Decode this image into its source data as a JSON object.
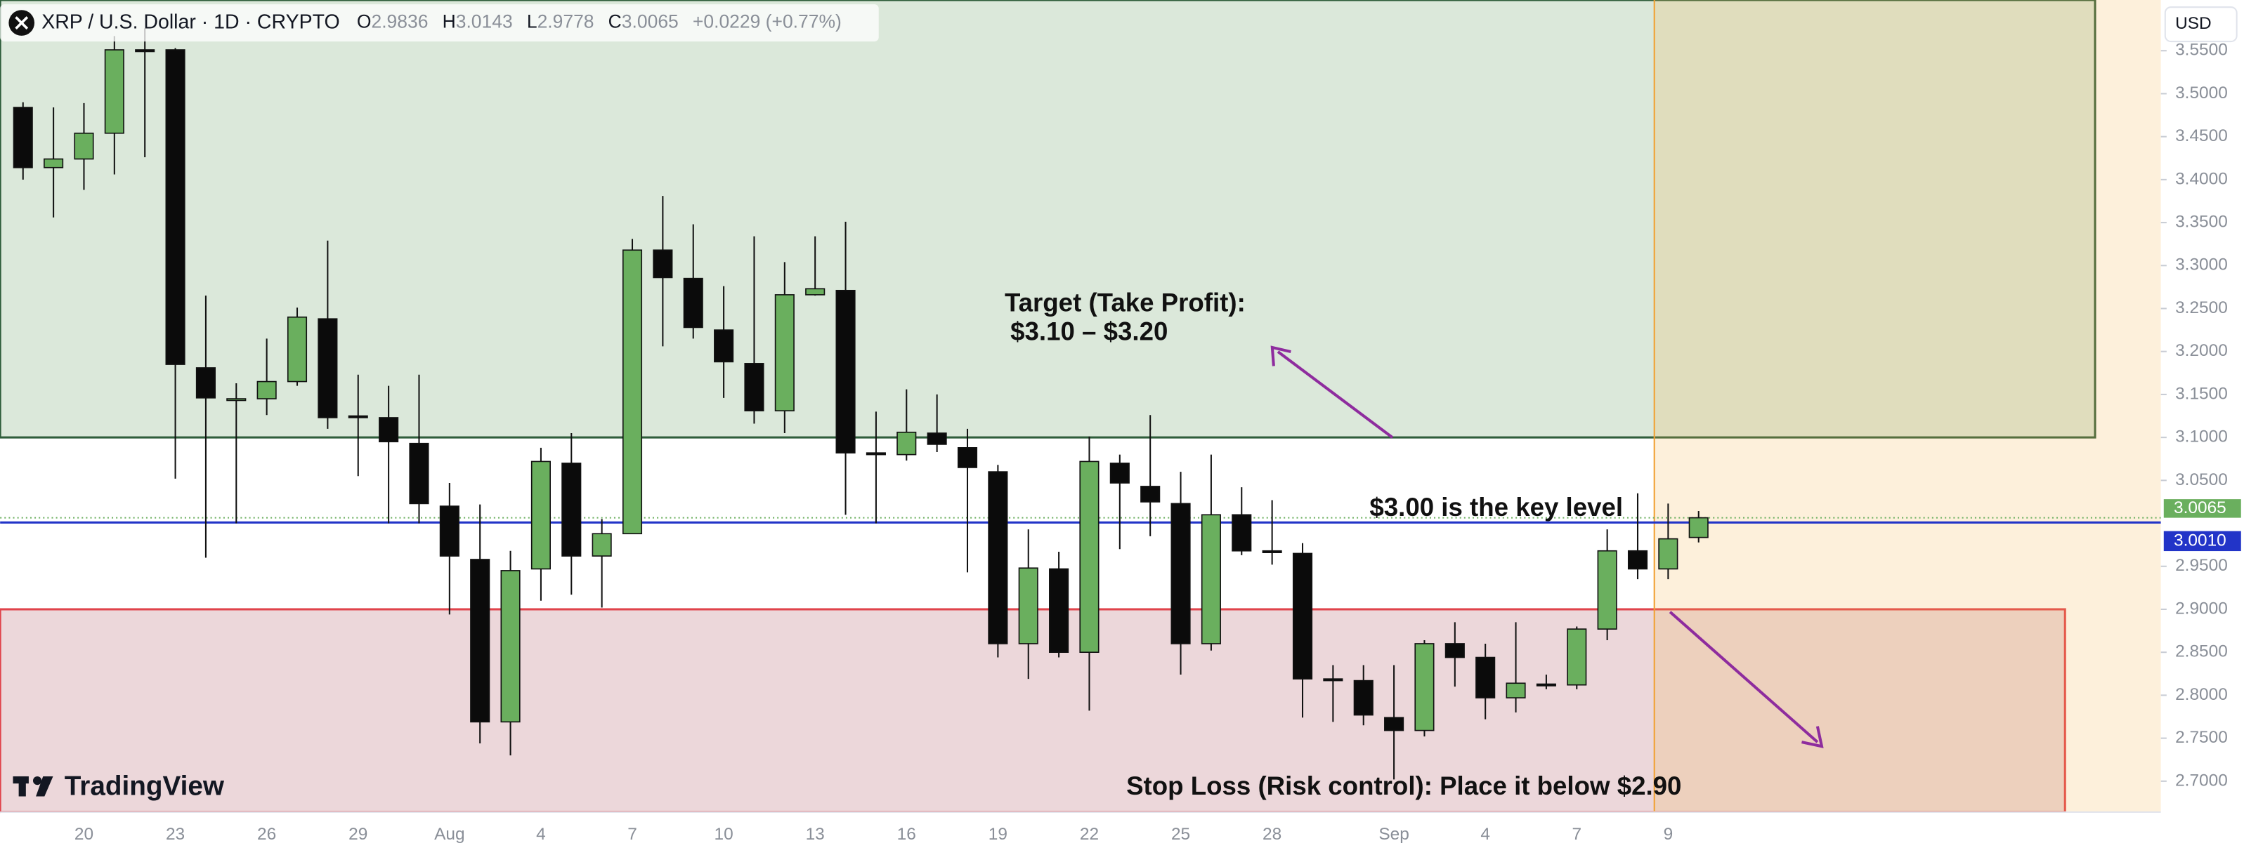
{
  "chart_data": {
    "type": "candlestick",
    "header": {
      "symbol": "XRP / U.S. Dollar · 1D · CRYPTO",
      "ohlc": [
        [
          "O",
          "2.9836"
        ],
        [
          "H",
          "3.0143"
        ],
        [
          "L",
          "2.9778"
        ],
        [
          "C",
          "3.0065"
        ]
      ],
      "change": "+0.0229 (+0.77%)"
    },
    "currency": "USD",
    "brand": "TradingView",
    "annotations": {
      "target_title": "Target (Take Profit):",
      "target_range": "$3.10 – $3.20",
      "key_level_note": "$3.00 is the key level",
      "stop_note": "Stop Loss (Risk control): Place it below $2.90"
    },
    "categories": [
      null,
      null,
      "20",
      null,
      null,
      "23",
      null,
      null,
      "26",
      null,
      null,
      "29",
      null,
      null,
      "Aug",
      null,
      null,
      "4",
      null,
      null,
      "7",
      null,
      null,
      "10",
      null,
      null,
      "13",
      null,
      null,
      "16",
      null,
      null,
      "19",
      null,
      null,
      "22",
      null,
      null,
      "25",
      null,
      null,
      "28",
      null,
      null,
      null,
      "Sep",
      null,
      null,
      "4",
      null,
      null,
      "7",
      null,
      null,
      "9",
      null
    ],
    "open": [
      3.484,
      3.414,
      3.424,
      3.454,
      3.551,
      3.551,
      3.181,
      3.145,
      3.145,
      3.165,
      3.238,
      3.125,
      3.123,
      3.093,
      3.02,
      2.958,
      2.769,
      2.947,
      3.07,
      2.962,
      2.988,
      3.318,
      3.285,
      3.225,
      3.186,
      3.131,
      3.266,
      3.271,
      3.082,
      3.08,
      3.105,
      3.088,
      3.06,
      2.86,
      2.947,
      2.85,
      3.07,
      3.043,
      3.023,
      2.86,
      3.01,
      2.968,
      2.965,
      2.819,
      2.817,
      2.774,
      2.759,
      2.86,
      2.844,
      2.797,
      2.813,
      2.812,
      2.877,
      2.968,
      2.947,
      2.9836
    ],
    "high": [
      3.49,
      3.484,
      3.489,
      3.567,
      3.576,
      3.553,
      3.265,
      3.163,
      3.215,
      3.251,
      3.329,
      3.173,
      3.16,
      3.173,
      3.047,
      3.022,
      2.968,
      3.088,
      3.105,
      3.005,
      3.331,
      3.381,
      3.348,
      3.276,
      3.334,
      3.304,
      3.334,
      3.351,
      3.13,
      3.156,
      3.15,
      3.11,
      3.068,
      2.993,
      2.967,
      3.101,
      3.08,
      3.126,
      3.06,
      3.08,
      3.042,
      3.027,
      2.977,
      2.835,
      2.835,
      2.835,
      2.864,
      2.885,
      2.86,
      2.885,
      2.824,
      2.88,
      2.993,
      3.035,
      3.023,
      3.0143
    ],
    "low": [
      3.4,
      3.356,
      3.388,
      3.406,
      3.426,
      3.052,
      2.96,
      3.0,
      3.126,
      3.16,
      3.11,
      3.055,
      3.0,
      3.0,
      2.894,
      2.744,
      2.73,
      2.91,
      2.917,
      2.902,
      2.988,
      3.206,
      3.215,
      3.146,
      3.116,
      3.105,
      3.265,
      3.01,
      3.0,
      3.073,
      3.083,
      2.943,
      2.844,
      2.819,
      2.844,
      2.782,
      2.97,
      2.985,
      2.824,
      2.852,
      2.963,
      2.952,
      2.774,
      2.769,
      2.765,
      2.702,
      2.752,
      2.81,
      2.772,
      2.78,
      2.807,
      2.807,
      2.864,
      2.935,
      2.935,
      2.9778
    ],
    "close": [
      3.414,
      3.424,
      3.454,
      3.551,
      3.549,
      3.185,
      3.146,
      3.145,
      3.165,
      3.24,
      3.123,
      3.123,
      3.095,
      3.023,
      2.962,
      2.769,
      2.945,
      3.072,
      2.962,
      2.988,
      3.318,
      3.286,
      3.228,
      3.188,
      3.131,
      3.266,
      3.273,
      3.082,
      3.081,
      3.106,
      3.092,
      3.065,
      2.86,
      2.948,
      2.85,
      3.072,
      3.047,
      3.025,
      2.86,
      3.01,
      2.968,
      2.967,
      2.819,
      2.818,
      2.777,
      2.759,
      2.86,
      2.844,
      2.797,
      2.814,
      2.812,
      2.877,
      2.968,
      2.947,
      2.982,
      3.0065
    ],
    "up_color": "#6aaf5e",
    "down_color": "#0b0b0b",
    "ylim": [
      2.664,
      3.609
    ],
    "yticks": [
      {
        "value": 2.7,
        "label": "2.7000"
      },
      {
        "value": 2.75,
        "label": "2.7500"
      },
      {
        "value": 2.8,
        "label": "2.8000"
      },
      {
        "value": 2.85,
        "label": "2.8500"
      },
      {
        "value": 2.9,
        "label": "2.9000"
      },
      {
        "value": 2.95,
        "label": "2.9500"
      },
      {
        "value": 3.05,
        "label": "3.0500"
      },
      {
        "value": 3.1,
        "label": "3.1000"
      },
      {
        "value": 3.15,
        "label": "3.1500"
      },
      {
        "value": 3.2,
        "label": "3.2000"
      },
      {
        "value": 3.25,
        "label": "3.2500"
      },
      {
        "value": 3.3,
        "label": "3.3000"
      },
      {
        "value": 3.35,
        "label": "3.3500"
      },
      {
        "value": 3.4,
        "label": "3.4000"
      },
      {
        "value": 3.45,
        "label": "3.4500"
      },
      {
        "value": 3.5,
        "label": "3.5000"
      },
      {
        "value": 3.55,
        "label": "3.5500"
      }
    ],
    "target_zone": {
      "low": 3.1,
      "high": 3.609,
      "color": "#dbe8da"
    },
    "stop_zone": {
      "low": 2.664,
      "high": 2.9,
      "color": "#ecd7da"
    },
    "key_level": {
      "value": 3.001,
      "label": "3.0010"
    },
    "last_price": 3.0065
  }
}
